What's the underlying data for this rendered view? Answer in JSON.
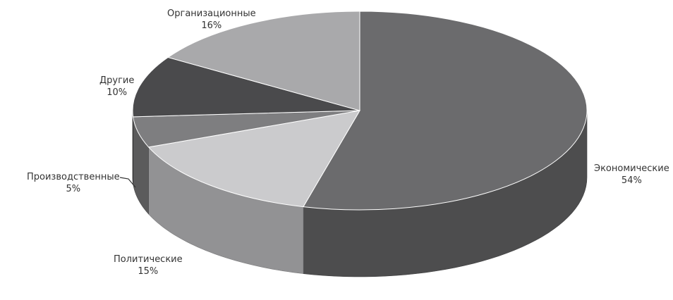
{
  "chart_data": {
    "type": "pie",
    "style": "3d",
    "slices": [
      {
        "label": "Экономические",
        "value": 54,
        "value_text": "54%",
        "color": "#6b6b6d"
      },
      {
        "label": "Политические",
        "value": 15,
        "value_text": "15%",
        "color": "#cbcbcd"
      },
      {
        "label": "Производственные",
        "value": 5,
        "value_text": "5%",
        "color": "#7e7e80"
      },
      {
        "label": "Другие",
        "value": 10,
        "value_text": "10%",
        "color": "#4a4a4c"
      },
      {
        "label": "Организационные",
        "value": 16,
        "value_text": "16%",
        "color": "#a9a9ab"
      }
    ],
    "legend": "none"
  }
}
